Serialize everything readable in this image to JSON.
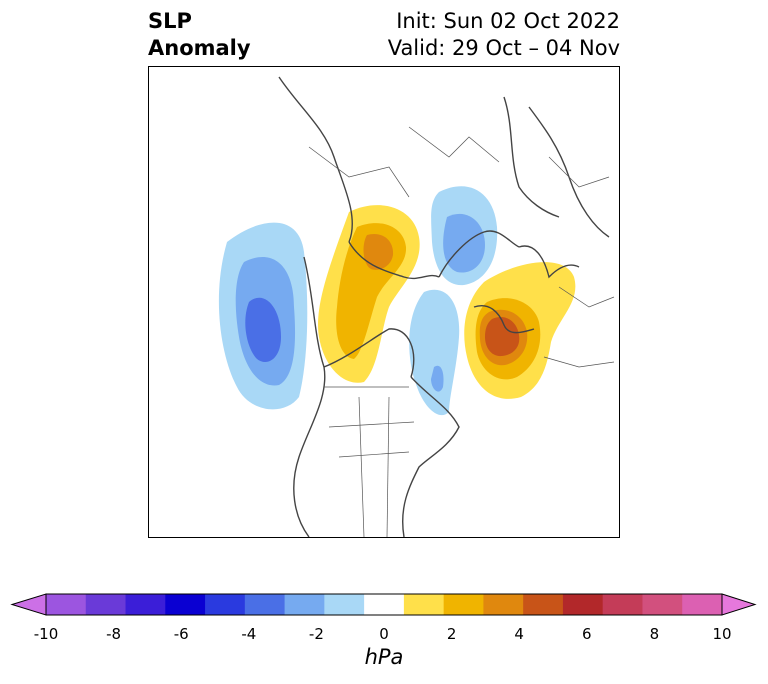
{
  "title": {
    "left_line1": "SLP",
    "left_line2": "Anomaly",
    "right_line1": "Init: Sun 02 Oct 2022",
    "right_line2": "Valid: 29 Oct – 04 Nov"
  },
  "colorbar": {
    "unit": "hPa",
    "ticks": [
      "-10",
      "-8",
      "-6",
      "-4",
      "-2",
      "0",
      "2",
      "4",
      "6",
      "8",
      "10"
    ],
    "colors": [
      "#cc70e6",
      "#9c55e0",
      "#6a3ad8",
      "#3b1ed8",
      "#0a00d2",
      "#2a3adf",
      "#4a6fe6",
      "#76aaf0",
      "#a9d8f6",
      "#ffffff",
      "#ffe04a",
      "#f0b400",
      "#e0880e",
      "#c85418",
      "#b2282a",
      "#c43c58",
      "#d2507e",
      "#dc60b2",
      "#e678dc"
    ]
  },
  "map": {
    "projection": "north polar stereographic",
    "features": [
      "coastlines",
      "country borders",
      "US state borders"
    ]
  }
}
